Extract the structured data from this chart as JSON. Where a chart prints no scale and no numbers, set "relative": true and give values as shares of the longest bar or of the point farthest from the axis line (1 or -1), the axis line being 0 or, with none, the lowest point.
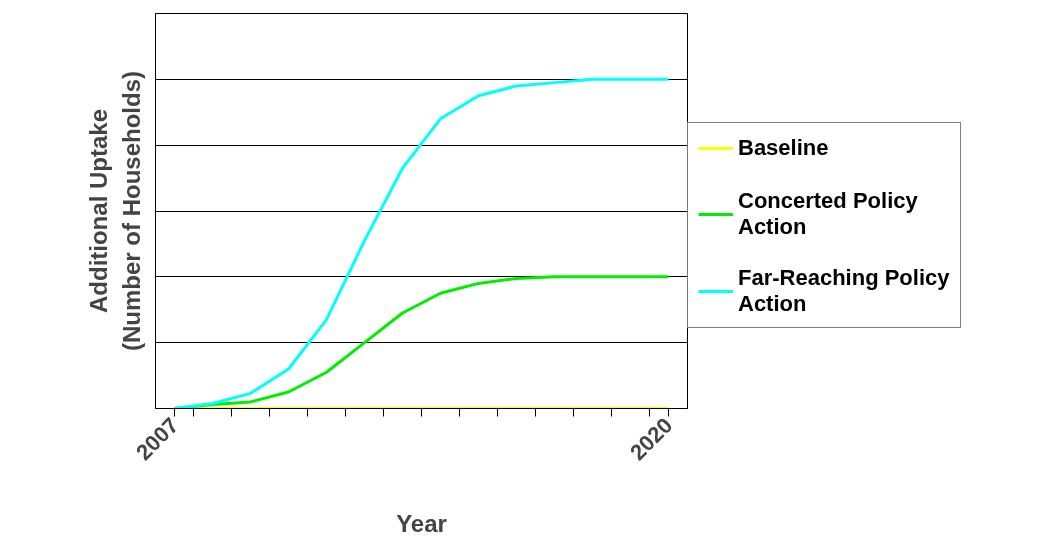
{
  "chart_data": {
    "type": "line",
    "relative": true,
    "xlabel": "Year",
    "ylabel": "Additional Uptake\n(Number of Households)",
    "x": [
      2007,
      2008,
      2009,
      2010,
      2011,
      2012,
      2013,
      2014,
      2015,
      2016,
      2017,
      2018,
      2019,
      2020
    ],
    "xlim": [
      2006.5,
      2020.5
    ],
    "xticks": [
      {
        "value": 2007,
        "label": "2007"
      },
      {
        "value": 2007.5,
        "label": null
      },
      {
        "value": 2008.5,
        "label": null
      },
      {
        "value": 2009.5,
        "label": null
      },
      {
        "value": 2010.5,
        "label": null
      },
      {
        "value": 2011.5,
        "label": null
      },
      {
        "value": 2012.5,
        "label": null
      },
      {
        "value": 2013.5,
        "label": null
      },
      {
        "value": 2014.5,
        "label": null
      },
      {
        "value": 2015.5,
        "label": null
      },
      {
        "value": 2016.5,
        "label": null
      },
      {
        "value": 2017.5,
        "label": null
      },
      {
        "value": 2018.5,
        "label": null
      },
      {
        "value": 2019.5,
        "label": null
      },
      {
        "value": 2020,
        "label": "2020"
      }
    ],
    "series": [
      {
        "name": "Baseline",
        "color": "#ffff00",
        "values": [
          0,
          0,
          0,
          0,
          0,
          0,
          0,
          0,
          0,
          0,
          0,
          0,
          0,
          0
        ]
      },
      {
        "name": "Concerted Policy Action",
        "color": "#00ee00",
        "values": [
          0,
          0.012,
          0.02,
          0.05,
          0.11,
          0.2,
          0.29,
          0.35,
          0.38,
          0.395,
          0.4,
          0.4,
          0.4,
          0.4
        ]
      },
      {
        "name": "Far-Reaching Policy Action",
        "color": "#00ffff",
        "values": [
          0,
          0.015,
          0.046,
          0.12,
          0.27,
          0.51,
          0.73,
          0.88,
          0.95,
          0.98,
          0.99,
          1.0,
          1.0,
          1.0
        ]
      }
    ],
    "grid": "y",
    "legend": "right",
    "marker": "none",
    "line_style": "solid"
  }
}
